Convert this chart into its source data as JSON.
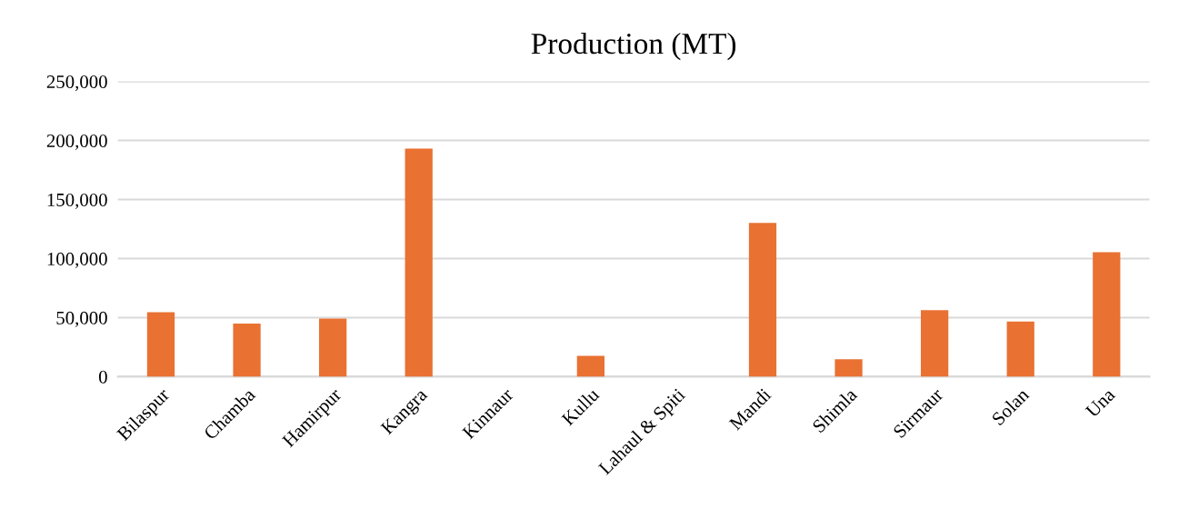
{
  "chart_data": {
    "type": "bar",
    "title": "Production (MT)",
    "categories": [
      "Bilaspur",
      "Chamba",
      "Hamirpur",
      "Kangra",
      "Kinnaur",
      "Kullu",
      "Lahaul & Spiti",
      "Mandi",
      "Shimla",
      "Sirmaur",
      "Solan",
      "Una"
    ],
    "values": [
      54500,
      44900,
      49100,
      193100,
      0,
      17700,
      0,
      130100,
      14800,
      56300,
      46600,
      105400
    ],
    "color": "#e97132",
    "ylim": [
      0,
      250000
    ],
    "yticks": [
      {
        "value": 0,
        "label": "0"
      },
      {
        "value": 50000,
        "label": "50,000"
      },
      {
        "value": 100000,
        "label": "100,000"
      },
      {
        "value": 150000,
        "label": "150,000"
      },
      {
        "value": 200000,
        "label": "200,000"
      },
      {
        "value": 250000,
        "label": "250,000"
      }
    ],
    "grid": "y",
    "legend": false
  }
}
